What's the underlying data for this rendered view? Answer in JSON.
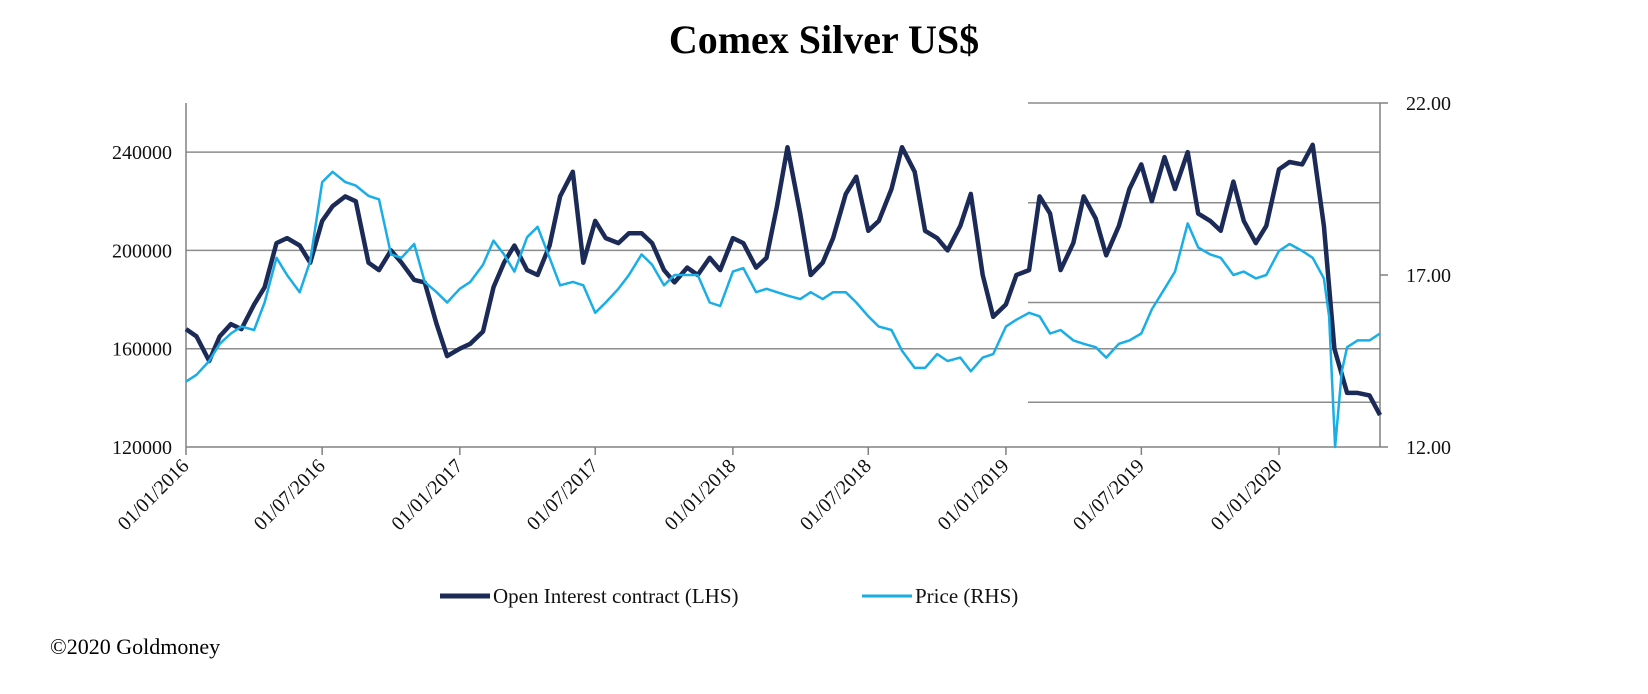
{
  "copyright": "©2020 Goldmoney",
  "chart_data": {
    "type": "line",
    "title": "Comex Silver US$",
    "xlabel": "",
    "x_ticks": [
      "01/01/2016",
      "01/07/2016",
      "01/01/2017",
      "01/07/2017",
      "01/01/2018",
      "01/07/2018",
      "01/01/2019",
      "01/07/2019",
      "01/01/2020"
    ],
    "xlim": [
      "2016-01-01",
      "2020-05-15"
    ],
    "y_left": {
      "label": "",
      "lim": [
        120000,
        260000
      ],
      "ticks": [
        "120000",
        "160000",
        "200000",
        "240000"
      ]
    },
    "y_right": {
      "label": "",
      "lim": [
        12.0,
        22.0
      ],
      "ticks": [
        "12.00",
        "17.00",
        "22.00"
      ]
    },
    "legend_position": "bottom-center",
    "grid": true,
    "series": [
      {
        "name": "Open Interest contract (LHS)",
        "axis": "left",
        "color": "#1b2a57",
        "points": [
          [
            "2016-01-01",
            168000
          ],
          [
            "2016-01-15",
            165000
          ],
          [
            "2016-02-01",
            155000
          ],
          [
            "2016-02-15",
            165000
          ],
          [
            "2016-03-01",
            170000
          ],
          [
            "2016-03-15",
            168000
          ],
          [
            "2016-04-01",
            178000
          ],
          [
            "2016-04-15",
            185000
          ],
          [
            "2016-05-01",
            203000
          ],
          [
            "2016-05-15",
            205000
          ],
          [
            "2016-06-01",
            202000
          ],
          [
            "2016-06-15",
            195000
          ],
          [
            "2016-07-01",
            212000
          ],
          [
            "2016-07-15",
            218000
          ],
          [
            "2016-08-01",
            222000
          ],
          [
            "2016-08-15",
            220000
          ],
          [
            "2016-09-01",
            195000
          ],
          [
            "2016-09-15",
            192000
          ],
          [
            "2016-10-01",
            200000
          ],
          [
            "2016-10-15",
            195000
          ],
          [
            "2016-11-01",
            188000
          ],
          [
            "2016-11-15",
            187000
          ],
          [
            "2016-12-01",
            170000
          ],
          [
            "2016-12-15",
            157000
          ],
          [
            "2017-01-01",
            160000
          ],
          [
            "2017-01-15",
            162000
          ],
          [
            "2017-02-01",
            167000
          ],
          [
            "2017-02-15",
            185000
          ],
          [
            "2017-03-01",
            195000
          ],
          [
            "2017-03-15",
            202000
          ],
          [
            "2017-04-01",
            192000
          ],
          [
            "2017-04-15",
            190000
          ],
          [
            "2017-05-01",
            202000
          ],
          [
            "2017-05-15",
            222000
          ],
          [
            "2017-06-01",
            232000
          ],
          [
            "2017-06-15",
            195000
          ],
          [
            "2017-07-01",
            212000
          ],
          [
            "2017-07-15",
            205000
          ],
          [
            "2017-08-01",
            203000
          ],
          [
            "2017-08-15",
            207000
          ],
          [
            "2017-09-01",
            207000
          ],
          [
            "2017-09-15",
            203000
          ],
          [
            "2017-10-01",
            192000
          ],
          [
            "2017-10-15",
            187000
          ],
          [
            "2017-11-01",
            193000
          ],
          [
            "2017-11-15",
            190000
          ],
          [
            "2017-12-01",
            197000
          ],
          [
            "2017-12-15",
            192000
          ],
          [
            "2018-01-01",
            205000
          ],
          [
            "2018-01-15",
            203000
          ],
          [
            "2018-02-01",
            193000
          ],
          [
            "2018-02-15",
            197000
          ],
          [
            "2018-03-01",
            218000
          ],
          [
            "2018-03-15",
            242000
          ],
          [
            "2018-04-01",
            215000
          ],
          [
            "2018-04-15",
            190000
          ],
          [
            "2018-05-01",
            195000
          ],
          [
            "2018-05-15",
            205000
          ],
          [
            "2018-06-01",
            223000
          ],
          [
            "2018-06-15",
            230000
          ],
          [
            "2018-07-01",
            208000
          ],
          [
            "2018-07-15",
            212000
          ],
          [
            "2018-08-01",
            225000
          ],
          [
            "2018-08-15",
            242000
          ],
          [
            "2018-09-01",
            232000
          ],
          [
            "2018-09-15",
            208000
          ],
          [
            "2018-10-01",
            205000
          ],
          [
            "2018-10-15",
            200000
          ],
          [
            "2018-11-01",
            210000
          ],
          [
            "2018-11-15",
            223000
          ],
          [
            "2018-12-01",
            190000
          ],
          [
            "2018-12-15",
            173000
          ],
          [
            "2019-01-01",
            178000
          ],
          [
            "2019-01-15",
            190000
          ],
          [
            "2019-02-01",
            192000
          ],
          [
            "2019-02-15",
            222000
          ],
          [
            "2019-03-01",
            215000
          ],
          [
            "2019-03-15",
            192000
          ],
          [
            "2019-04-01",
            203000
          ],
          [
            "2019-04-15",
            222000
          ],
          [
            "2019-05-01",
            213000
          ],
          [
            "2019-05-15",
            198000
          ],
          [
            "2019-06-01",
            210000
          ],
          [
            "2019-06-15",
            225000
          ],
          [
            "2019-07-01",
            235000
          ],
          [
            "2019-07-15",
            220000
          ],
          [
            "2019-08-01",
            238000
          ],
          [
            "2019-08-15",
            225000
          ],
          [
            "2019-09-01",
            240000
          ],
          [
            "2019-09-15",
            215000
          ],
          [
            "2019-10-01",
            212000
          ],
          [
            "2019-10-15",
            208000
          ],
          [
            "2019-11-01",
            228000
          ],
          [
            "2019-11-15",
            212000
          ],
          [
            "2019-12-01",
            203000
          ],
          [
            "2019-12-15",
            210000
          ],
          [
            "2020-01-01",
            233000
          ],
          [
            "2020-01-15",
            236000
          ],
          [
            "2020-02-01",
            235000
          ],
          [
            "2020-02-15",
            243000
          ],
          [
            "2020-03-01",
            210000
          ],
          [
            "2020-03-15",
            160000
          ],
          [
            "2020-04-01",
            142000
          ],
          [
            "2020-04-15",
            142000
          ],
          [
            "2020-05-01",
            141000
          ],
          [
            "2020-05-15",
            133000
          ]
        ]
      },
      {
        "name": "Price (RHS)",
        "axis": "right",
        "color": "#1aaee6",
        "points": [
          [
            "2016-01-01",
            13.9
          ],
          [
            "2016-01-15",
            14.1
          ],
          [
            "2016-02-01",
            14.5
          ],
          [
            "2016-02-15",
            15.0
          ],
          [
            "2016-03-01",
            15.3
          ],
          [
            "2016-03-15",
            15.5
          ],
          [
            "2016-04-01",
            15.4
          ],
          [
            "2016-04-15",
            16.2
          ],
          [
            "2016-05-01",
            17.5
          ],
          [
            "2016-05-15",
            17.0
          ],
          [
            "2016-06-01",
            16.5
          ],
          [
            "2016-06-15",
            17.4
          ],
          [
            "2016-07-01",
            19.7
          ],
          [
            "2016-07-15",
            20.0
          ],
          [
            "2016-08-01",
            19.7
          ],
          [
            "2016-08-15",
            19.6
          ],
          [
            "2016-09-01",
            19.3
          ],
          [
            "2016-09-15",
            19.2
          ],
          [
            "2016-10-01",
            17.6
          ],
          [
            "2016-10-15",
            17.5
          ],
          [
            "2016-11-01",
            17.9
          ],
          [
            "2016-11-15",
            16.8
          ],
          [
            "2016-12-01",
            16.5
          ],
          [
            "2016-12-15",
            16.2
          ],
          [
            "2017-01-01",
            16.6
          ],
          [
            "2017-01-15",
            16.8
          ],
          [
            "2017-02-01",
            17.3
          ],
          [
            "2017-02-15",
            18.0
          ],
          [
            "2017-03-01",
            17.6
          ],
          [
            "2017-03-15",
            17.1
          ],
          [
            "2017-04-01",
            18.1
          ],
          [
            "2017-04-15",
            18.4
          ],
          [
            "2017-05-01",
            17.5
          ],
          [
            "2017-05-15",
            16.7
          ],
          [
            "2017-06-01",
            16.8
          ],
          [
            "2017-06-15",
            16.7
          ],
          [
            "2017-07-01",
            15.9
          ],
          [
            "2017-07-15",
            16.2
          ],
          [
            "2017-08-01",
            16.6
          ],
          [
            "2017-08-15",
            17.0
          ],
          [
            "2017-09-01",
            17.6
          ],
          [
            "2017-09-15",
            17.3
          ],
          [
            "2017-10-01",
            16.7
          ],
          [
            "2017-10-15",
            17.0
          ],
          [
            "2017-11-01",
            17.0
          ],
          [
            "2017-11-15",
            17.0
          ],
          [
            "2017-12-01",
            16.2
          ],
          [
            "2017-12-15",
            16.1
          ],
          [
            "2018-01-01",
            17.1
          ],
          [
            "2018-01-15",
            17.2
          ],
          [
            "2018-02-01",
            16.5
          ],
          [
            "2018-02-15",
            16.6
          ],
          [
            "2018-03-01",
            16.5
          ],
          [
            "2018-03-15",
            16.4
          ],
          [
            "2018-04-01",
            16.3
          ],
          [
            "2018-04-15",
            16.5
          ],
          [
            "2018-05-01",
            16.3
          ],
          [
            "2018-05-15",
            16.5
          ],
          [
            "2018-06-01",
            16.5
          ],
          [
            "2018-06-15",
            16.2
          ],
          [
            "2018-07-01",
            15.8
          ],
          [
            "2018-07-15",
            15.5
          ],
          [
            "2018-08-01",
            15.4
          ],
          [
            "2018-08-15",
            14.8
          ],
          [
            "2018-09-01",
            14.3
          ],
          [
            "2018-09-15",
            14.3
          ],
          [
            "2018-10-01",
            14.7
          ],
          [
            "2018-10-15",
            14.5
          ],
          [
            "2018-11-01",
            14.6
          ],
          [
            "2018-11-15",
            14.2
          ],
          [
            "2018-12-01",
            14.6
          ],
          [
            "2018-12-15",
            14.7
          ],
          [
            "2019-01-01",
            15.5
          ],
          [
            "2019-01-15",
            15.7
          ],
          [
            "2019-02-01",
            15.9
          ],
          [
            "2019-02-15",
            15.8
          ],
          [
            "2019-03-01",
            15.3
          ],
          [
            "2019-03-15",
            15.4
          ],
          [
            "2019-04-01",
            15.1
          ],
          [
            "2019-04-15",
            15.0
          ],
          [
            "2019-05-01",
            14.9
          ],
          [
            "2019-05-15",
            14.6
          ],
          [
            "2019-06-01",
            15.0
          ],
          [
            "2019-06-15",
            15.1
          ],
          [
            "2019-07-01",
            15.3
          ],
          [
            "2019-07-15",
            16.0
          ],
          [
            "2019-08-01",
            16.6
          ],
          [
            "2019-08-15",
            17.1
          ],
          [
            "2019-09-01",
            18.5
          ],
          [
            "2019-09-15",
            17.8
          ],
          [
            "2019-10-01",
            17.6
          ],
          [
            "2019-10-15",
            17.5
          ],
          [
            "2019-11-01",
            17.0
          ],
          [
            "2019-11-15",
            17.1
          ],
          [
            "2019-12-01",
            16.9
          ],
          [
            "2019-12-15",
            17.0
          ],
          [
            "2020-01-01",
            17.7
          ],
          [
            "2020-01-15",
            17.9
          ],
          [
            "2020-02-01",
            17.7
          ],
          [
            "2020-02-15",
            17.5
          ],
          [
            "2020-03-01",
            16.9
          ],
          [
            "2020-03-08",
            15.8
          ],
          [
            "2020-03-16",
            12.0
          ],
          [
            "2020-03-25",
            14.2
          ],
          [
            "2020-04-01",
            14.9
          ],
          [
            "2020-04-15",
            15.1
          ],
          [
            "2020-05-01",
            15.1
          ],
          [
            "2020-05-15",
            15.3
          ]
        ]
      }
    ]
  }
}
